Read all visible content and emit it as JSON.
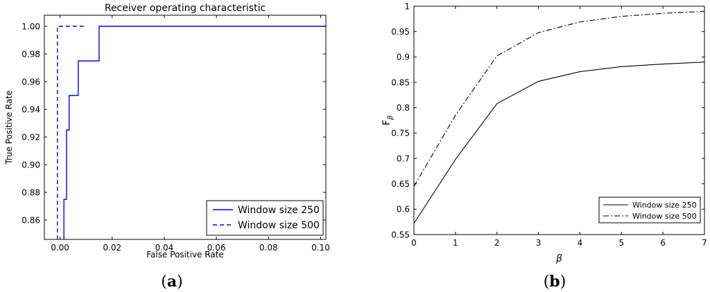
{
  "chart_data": [
    {
      "id": "a",
      "type": "line",
      "title": "Receiver operating characteristic",
      "xlabel": "False Positive Rate",
      "ylabel": "True Positive Rate",
      "xlim": [
        -0.006,
        0.102
      ],
      "ylim": [
        0.846,
        1.008
      ],
      "xticks": [
        0.0,
        0.02,
        0.04,
        0.06,
        0.08,
        0.1
      ],
      "xtick_labels": [
        "0.00",
        "0.02",
        "0.04",
        "0.06",
        "0.08",
        "0.10"
      ],
      "yticks": [
        0.86,
        0.88,
        0.9,
        0.92,
        0.94,
        0.96,
        0.98,
        1.0
      ],
      "ytick_labels": [
        "0.86",
        "0.88",
        "0.90",
        "0.92",
        "0.94",
        "0.96",
        "0.98",
        "1.00"
      ],
      "grid": false,
      "legend": "bottom-right",
      "series": [
        {
          "name": "Window size 250",
          "color": "#0000ff",
          "style": "solid",
          "step": true,
          "x": [
            0.0015,
            0.0015,
            0.0025,
            0.0025,
            0.0035,
            0.0035,
            0.007,
            0.007,
            0.015,
            0.015,
            0.102
          ],
          "y": [
            0.846,
            0.875,
            0.875,
            0.925,
            0.925,
            0.95,
            0.95,
            0.975,
            0.975,
            1.0,
            1.0
          ]
        },
        {
          "name": "Window size 500",
          "color": "#0000ff",
          "style": "dashed",
          "step": true,
          "x": [
            -0.001,
            -0.001,
            0.01
          ],
          "y": [
            0.846,
            1.0,
            1.0
          ]
        }
      ],
      "caption": "a"
    },
    {
      "id": "b",
      "type": "line",
      "title": "",
      "xlabel": "β",
      "ylabel": "F",
      "ylabel_sub": "β",
      "xlim": [
        0,
        7
      ],
      "ylim": [
        0.55,
        1.0
      ],
      "xticks": [
        0,
        1,
        2,
        3,
        4,
        5,
        6,
        7
      ],
      "xtick_labels": [
        "0",
        "1",
        "2",
        "3",
        "4",
        "5",
        "6",
        "7"
      ],
      "yticks": [
        0.55,
        0.6,
        0.65,
        0.7,
        0.75,
        0.8,
        0.85,
        0.9,
        0.95,
        1.0
      ],
      "ytick_labels": [
        "0.55",
        "0.6",
        "0.65",
        "0.7",
        "0.75",
        "0.8",
        "0.85",
        "0.9",
        "0.95",
        "1"
      ],
      "grid": false,
      "legend": "bottom-right",
      "series": [
        {
          "name": "Window size 250",
          "color": "#000000",
          "style": "solid",
          "x": [
            0,
            1,
            2,
            3,
            4,
            5,
            6,
            7
          ],
          "y": [
            0.572,
            0.698,
            0.808,
            0.852,
            0.871,
            0.881,
            0.886,
            0.89
          ]
        },
        {
          "name": "Window size 500",
          "color": "#000000",
          "style": "dashdot",
          "x": [
            0,
            1,
            2,
            3,
            4,
            5,
            6,
            7
          ],
          "y": [
            0.645,
            0.785,
            0.902,
            0.948,
            0.969,
            0.98,
            0.986,
            0.99
          ]
        }
      ],
      "caption": "b"
    }
  ]
}
